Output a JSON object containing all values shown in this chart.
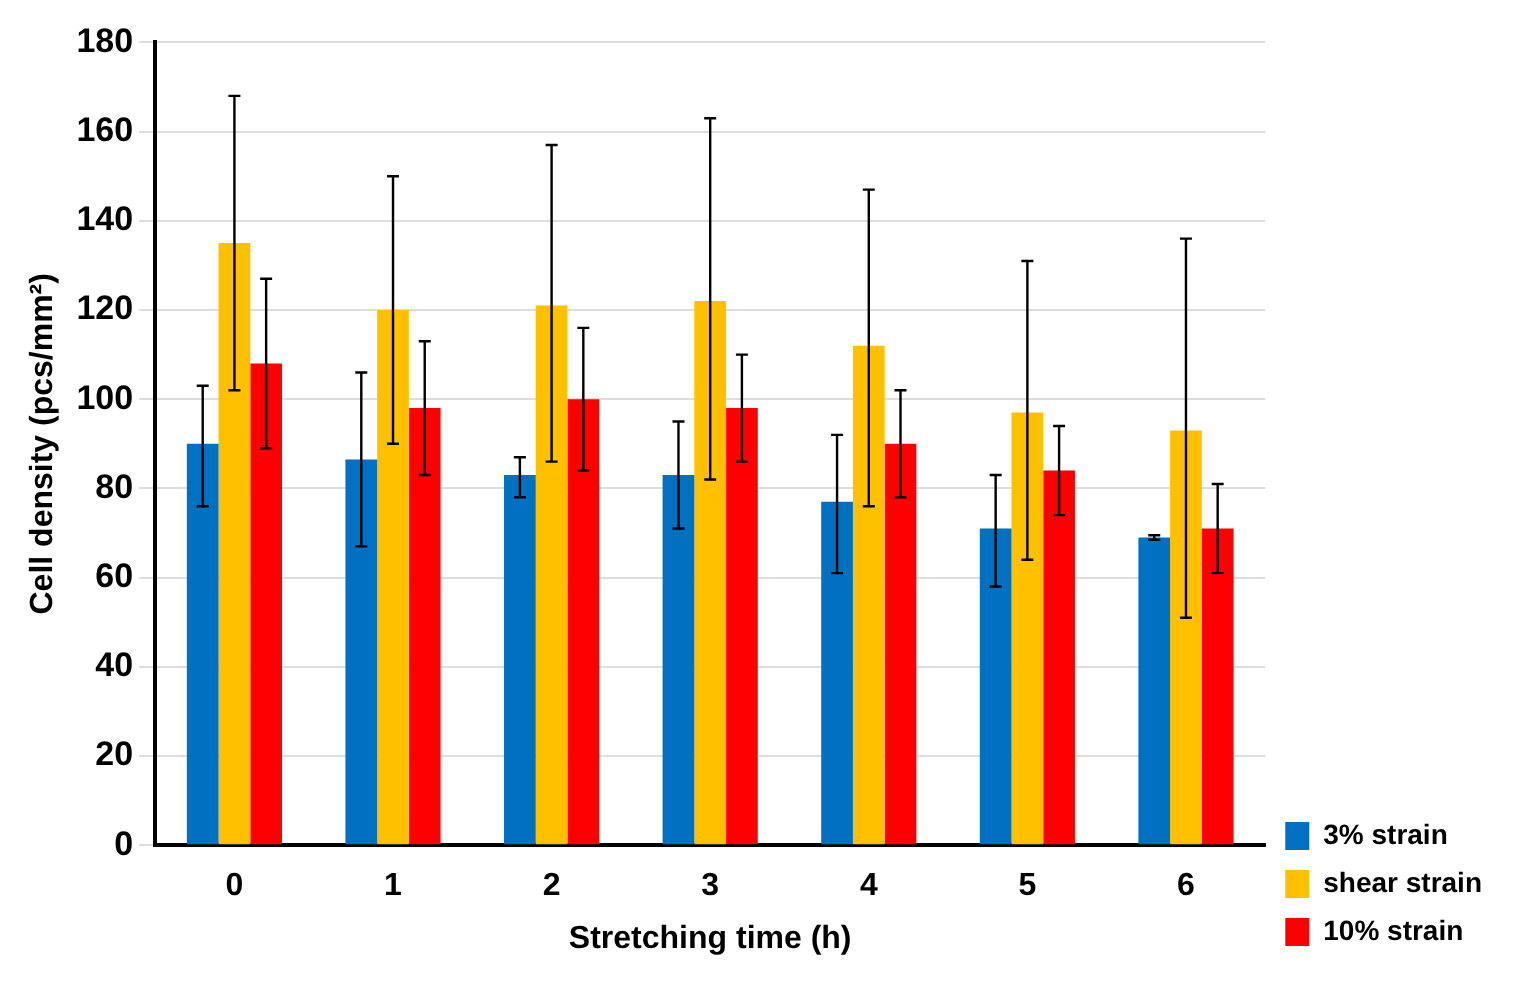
{
  "chart_data": {
    "type": "bar",
    "xlabel": "Stretching time (h)",
    "ylabel": "Cell density (pcs/mm²)",
    "categories": [
      "0",
      "1",
      "2",
      "3",
      "4",
      "5",
      "6"
    ],
    "series": [
      {
        "name": "3% strain",
        "color": "#0070c0",
        "values": [
          90,
          86.5,
          83,
          83,
          77,
          71,
          69
        ],
        "errors": [
          [
            76,
            103
          ],
          [
            67,
            106
          ],
          [
            78,
            87
          ],
          [
            71,
            95
          ],
          [
            61,
            92
          ],
          [
            58,
            83
          ],
          [
            68.5,
            69.5
          ]
        ]
      },
      {
        "name": "shear strain",
        "color": "#ffc000",
        "values": [
          135,
          120,
          121,
          122,
          112,
          97,
          93
        ],
        "errors": [
          [
            102,
            168
          ],
          [
            90,
            150
          ],
          [
            86,
            157
          ],
          [
            82,
            163
          ],
          [
            76,
            147
          ],
          [
            64,
            131
          ],
          [
            51,
            136
          ]
        ]
      },
      {
        "name": "10% strain",
        "color": "#ff0000",
        "values": [
          108,
          98,
          100,
          98,
          90,
          84,
          71
        ],
        "errors": [
          [
            89,
            127
          ],
          [
            83,
            113
          ],
          [
            84,
            116
          ],
          [
            86,
            110
          ],
          [
            78,
            102
          ],
          [
            74,
            94
          ],
          [
            61,
            81
          ]
        ]
      }
    ],
    "ylim": [
      0,
      180
    ],
    "yticks": [
      0,
      20,
      40,
      60,
      80,
      100,
      120,
      140,
      160,
      180
    ],
    "grid": "y",
    "legend": "bottom right"
  }
}
